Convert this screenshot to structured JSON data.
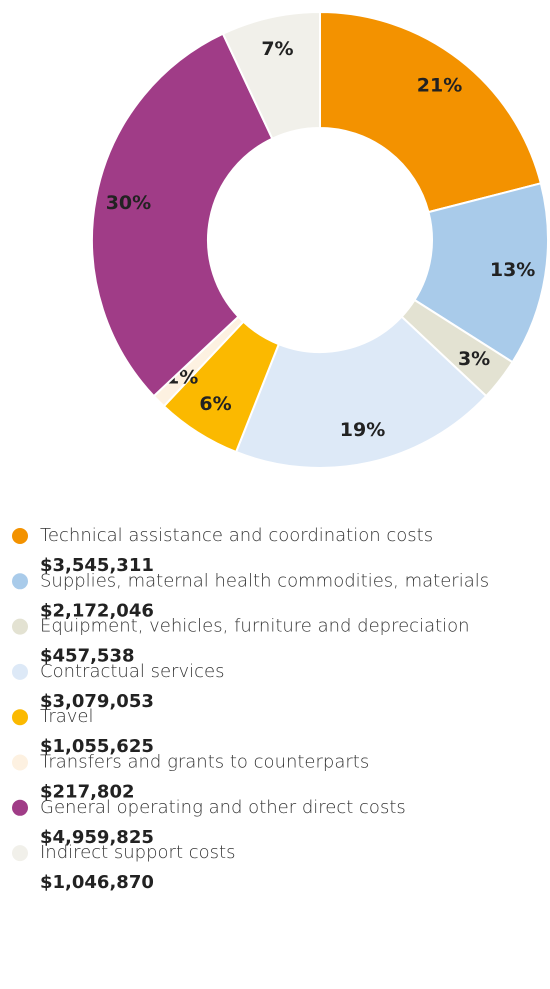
{
  "chart_data": {
    "type": "donut",
    "categories": [
      "Technical assistance and coordination costs",
      "Supplies, maternal health commodities, materials",
      "Equipment, vehicles, furniture and depreciation",
      "Contractual services",
      "Travel",
      "Transfers and grants to counterparts",
      "General operating and other direct costs",
      "Indirect support costs"
    ],
    "values": [
      21,
      13,
      3,
      19,
      6,
      1,
      30,
      7
    ],
    "value_labels": [
      "21%",
      "13%",
      "3%",
      "19%",
      "6%",
      "1%",
      "30%",
      "7%"
    ],
    "amounts": [
      "$3,545,311",
      "$2,172,046",
      "$457,538",
      "$3,079,053",
      "$1,055,625",
      "$217,802",
      "$4,959,825",
      "$1,046,870"
    ],
    "colors": [
      "#f39200",
      "#a9cbea",
      "#e3e2d2",
      "#dde9f7",
      "#fbb900",
      "#fdf1e1",
      "#a03c87",
      "#f1f0ea"
    ]
  }
}
